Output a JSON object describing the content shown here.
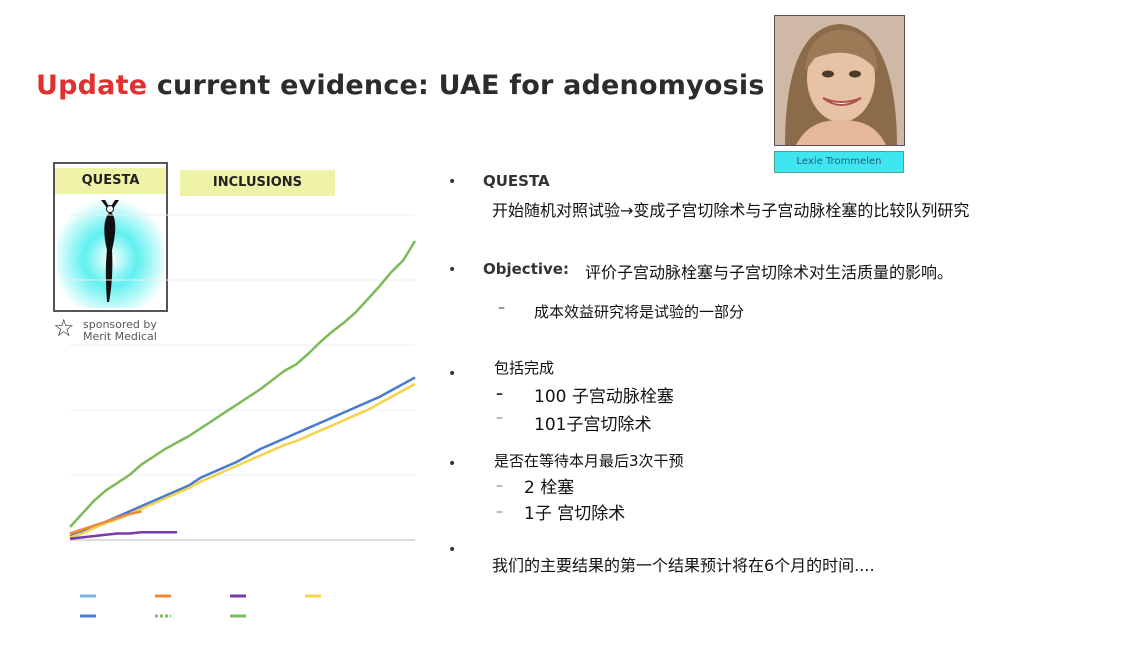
{
  "title": {
    "highlight": "Update",
    "rest": " current evidence: UAE for adenomyosis"
  },
  "photo": {
    "name_tag": "Lexie Trommelen"
  },
  "logo": {
    "label": "QUESTA",
    "sponsor_line1": "sponsored by",
    "sponsor_line2": "Merit Medical"
  },
  "inclusions_label": "INCLUSIONS",
  "bullets": {
    "questa": {
      "heading": "QUESTA",
      "text": "开始随机对照试验→变成子宫切除术与子宫动脉栓塞的比较队列研究"
    },
    "objective": {
      "heading": "Objective:",
      "text": "评价子宫动脉栓塞与子宫切除术对生活质量的影响。",
      "sub": "成本效益研究将是试验的一部分"
    },
    "included": {
      "text": "包括完成",
      "sub1": "100 子宫动脉栓塞",
      "sub2": "101子宫切除术"
    },
    "waiting": {
      "text": "是否在等待本月最后3次干预",
      "sub1": "2 栓塞",
      "sub2": "1子 宫切除术"
    },
    "result": {
      "text": "我们的主要结果的第一个结果预计将在6个月的时间...."
    }
  },
  "colors": {
    "title_highlight": "#e03030",
    "series_green": "#7cbb5a",
    "series_blue": "#4a7bd0",
    "series_yellow": "#f6d24a",
    "series_orange": "#f08a3a",
    "series_purple": "#7a3aa8",
    "series_lightblue": "#7fb6e6"
  },
  "chart_data": {
    "type": "line",
    "series": [
      {
        "values": [
          1,
          2,
          3,
          3.8,
          4.4,
          5,
          5.8,
          6.4,
          7,
          7.5,
          8,
          8.6,
          9.2,
          9.8,
          10.4,
          11,
          11.6,
          12.3,
          13,
          13.5,
          14.3,
          15.2,
          16,
          16.7,
          17.5,
          18.5,
          19.5,
          20.6,
          21.5,
          23
        ]
      },
      {
        "values": [
          0.3,
          0.6,
          1,
          1.4,
          1.8,
          2.2,
          2.6,
          3,
          3.4,
          3.8,
          4.2,
          4.8,
          5.2,
          5.6,
          6,
          6.5,
          7,
          7.4,
          7.8,
          8.2,
          8.6,
          9,
          9.4,
          9.8,
          10.2,
          10.6,
          11,
          11.5,
          12,
          12.5
        ]
      },
      {
        "values": [
          0.2,
          0.5,
          0.9,
          1.3,
          1.6,
          2,
          2.4,
          2.8,
          3.2,
          3.6,
          4,
          4.5,
          4.9,
          5.3,
          5.7,
          6.1,
          6.5,
          6.9,
          7.3,
          7.6,
          8,
          8.4,
          8.8,
          9.2,
          9.6,
          10,
          10.5,
          11,
          11.5,
          12
        ]
      },
      {
        "values": [
          0.5,
          0.8,
          1.1,
          1.4,
          1.7,
          2,
          2.2
        ]
      },
      {
        "values": [
          0.1,
          0.2,
          0.3,
          0.4,
          0.5,
          0.5,
          0.6,
          0.6,
          0.6,
          0.6
        ]
      }
    ]
  }
}
